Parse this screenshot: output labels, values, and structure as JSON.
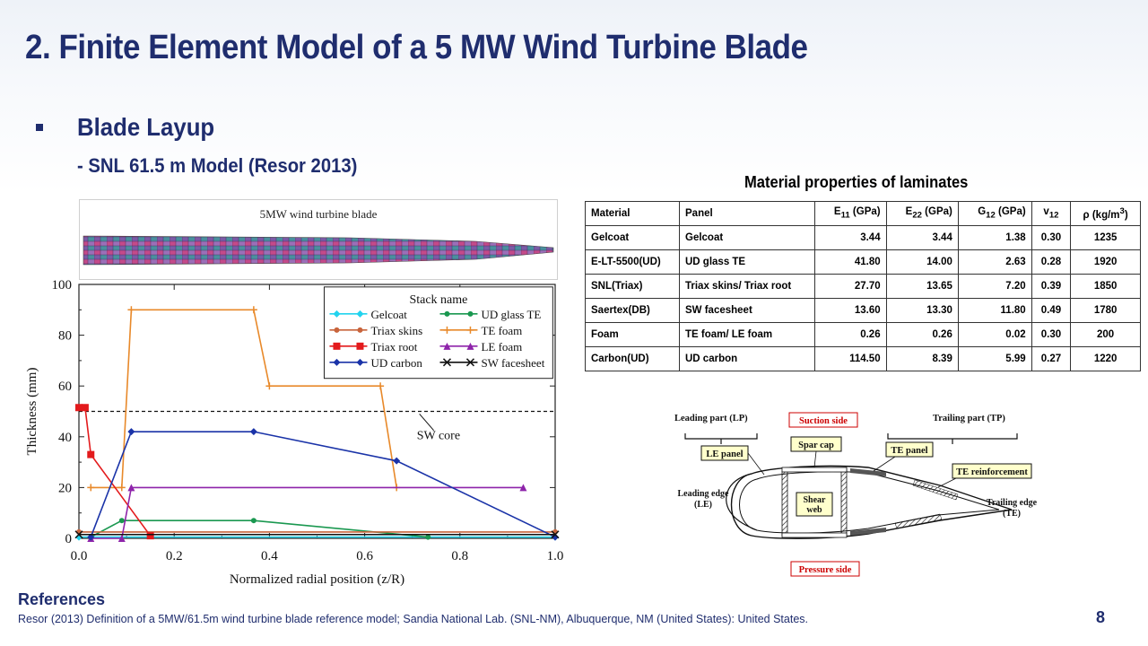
{
  "slide": {
    "title": "2. Finite Element Model of a 5 MW Wind Turbine Blade",
    "bullet": "Blade Layup",
    "subbullet": "- SNL 61.5 m Model (Resor 2013)",
    "page_number": "8"
  },
  "blade_image": {
    "label": "5MW wind turbine blade"
  },
  "chart_data": {
    "type": "line",
    "xlabel": "Normalized radial position (z/R)",
    "ylabel": "Thickness (mm)",
    "xlim": [
      0,
      1
    ],
    "ylim": [
      0,
      100
    ],
    "xticks": [
      "0.0",
      "0.2",
      "0.4",
      "0.6",
      "0.8",
      "1.0"
    ],
    "yticks": [
      "0",
      "20",
      "40",
      "60",
      "80",
      "100"
    ],
    "legend_title": "Stack name",
    "legend_placement": "top-right",
    "grid": false,
    "annotation": "SW core",
    "sw_core_level": 50,
    "series": [
      {
        "name": "Gelcoat",
        "color": "#22d3ee",
        "marker": "diamond",
        "points": [
          [
            0,
            0.5
          ],
          [
            1.0,
            0.5
          ]
        ]
      },
      {
        "name": "UD glass TE",
        "color": "#1a9850",
        "marker": "circle",
        "points": [
          [
            0.025,
            0.5
          ],
          [
            0.09,
            7
          ],
          [
            0.367,
            7
          ],
          [
            0.733,
            0.5
          ]
        ]
      },
      {
        "name": "Triax skins",
        "color": "#c8643c",
        "marker": "circle",
        "points": [
          [
            0,
            2.5
          ],
          [
            1.0,
            2.5
          ]
        ]
      },
      {
        "name": "TE foam",
        "color": "#e8892a",
        "marker": "plus",
        "points": [
          [
            0.025,
            20
          ],
          [
            0.09,
            20
          ],
          [
            0.11,
            90
          ],
          [
            0.367,
            90
          ],
          [
            0.4,
            60
          ],
          [
            0.633,
            60
          ],
          [
            0.667,
            20
          ]
        ]
      },
      {
        "name": "Triax root",
        "color": "#e31a1c",
        "marker": "square",
        "points": [
          [
            0,
            51.5
          ],
          [
            0.013,
            51.5
          ],
          [
            0.025,
            33
          ],
          [
            0.15,
            1
          ]
        ]
      },
      {
        "name": "LE foam",
        "color": "#8e24aa",
        "marker": "triangle",
        "points": [
          [
            0.025,
            0
          ],
          [
            0.09,
            0
          ],
          [
            0.11,
            20
          ],
          [
            0.933,
            20
          ]
        ]
      },
      {
        "name": "UD carbon",
        "color": "#1a33a8",
        "marker": "diamond",
        "points": [
          [
            0.025,
            0.5
          ],
          [
            0.11,
            42
          ],
          [
            0.367,
            42
          ],
          [
            0.667,
            30.5
          ],
          [
            1.0,
            0.5
          ]
        ]
      },
      {
        "name": "SW facesheet",
        "color": "#111111",
        "marker": "cross",
        "points": [
          [
            0,
            1.5
          ],
          [
            1.0,
            1.5
          ]
        ]
      }
    ]
  },
  "table": {
    "title": "Material properties of laminates",
    "headers": [
      "Material",
      "Panel",
      "E11 (GPa)",
      "E22 (GPa)",
      "G12 (GPa)",
      "v12",
      "ρ (kg/m3)"
    ],
    "rows": [
      [
        "Gelcoat",
        "Gelcoat",
        "3.44",
        "3.44",
        "1.38",
        "0.30",
        "1235"
      ],
      [
        "E-LT-5500(UD)",
        "UD glass TE",
        "41.80",
        "14.00",
        "2.63",
        "0.28",
        "1920"
      ],
      [
        "SNL(Triax)",
        "Triax skins/ Triax root",
        "27.70",
        "13.65",
        "7.20",
        "0.39",
        "1850"
      ],
      [
        "Saertex(DB)",
        "SW facesheet",
        "13.60",
        "13.30",
        "11.80",
        "0.49",
        "1780"
      ],
      [
        "Foam",
        "TE foam/ LE foam",
        "0.26",
        "0.26",
        "0.02",
        "0.30",
        "200"
      ],
      [
        "Carbon(UD)",
        "UD carbon",
        "114.50",
        "8.39",
        "5.99",
        "0.27",
        "1220"
      ]
    ]
  },
  "cross_section": {
    "leading_part": "Leading part (LP)",
    "trailing_part": "Trailing part (TP)",
    "suction_side": "Suction side",
    "pressure_side": "Pressure side",
    "spar_cap": "Spar cap",
    "le_panel": "LE panel",
    "te_panel": "TE panel",
    "te_reinforcement": "TE reinforcement",
    "shear_web_1": "Shear",
    "shear_web_2": "web",
    "leading_edge_1": "Leading edge",
    "leading_edge_2": "(LE)",
    "trailing_edge_1": "Trailing edge",
    "trailing_edge_2": "(TE)"
  },
  "references": {
    "heading": "References",
    "text": "Resor (2013) Definition of a 5MW/61.5m wind turbine blade reference model; Sandia National Lab. (SNL-NM), Albuquerque, NM (United States): United States."
  }
}
